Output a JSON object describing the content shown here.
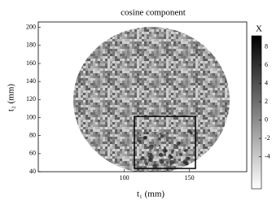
{
  "chart_data": {
    "type": "heatmap",
    "title": "cosine component",
    "xlabel": "t₁ (mm)",
    "ylabel": "t₂ (mm)",
    "xlim": [
      34,
      194
    ],
    "xticks": [
      100,
      150
    ],
    "ylim": [
      40,
      206
    ],
    "yticks": [
      40,
      60,
      80,
      100,
      120,
      140,
      160,
      180,
      200
    ],
    "colorbar": {
      "label": "X",
      "clim": [
        -7.5,
        9.2
      ],
      "ticks": [
        -4,
        -2,
        0,
        2,
        4,
        6,
        8
      ],
      "colors": [
        "#ffffff",
        "#000000"
      ]
    }
  }
}
